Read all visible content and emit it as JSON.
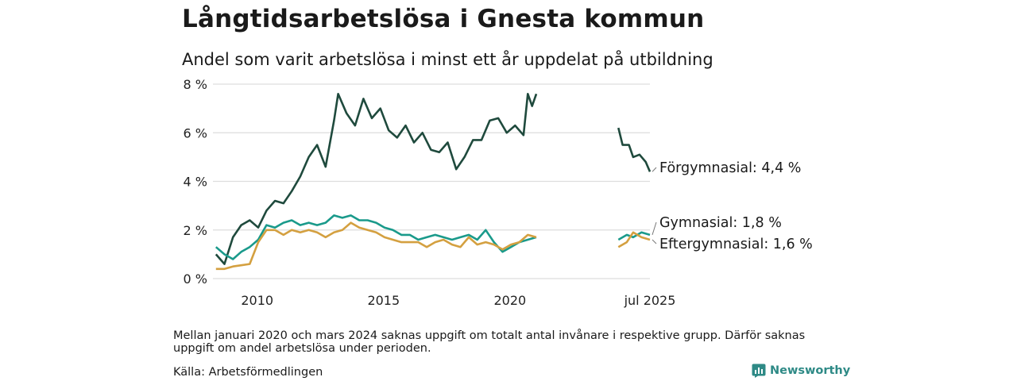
{
  "header": {
    "title": "Långtidsarbetslösa i Gnesta kommun",
    "subtitle": "Andel som varit arbetslösa i minst ett år uppdelat på utbildning"
  },
  "footer": {
    "note": "Mellan januari 2020 och mars 2024 saknas uppgift om totalt antal invånare i respektive grupp. Därför saknas uppgift om andel arbetslösa under perioden.",
    "source": "Källa: Arbetsförmedlingen",
    "brand": "Newsworthy"
  },
  "chart_data": {
    "type": "line",
    "title": "Långtidsarbetslösa i Gnesta kommun",
    "subtitle": "Andel som varit arbetslösa i minst ett år uppdelat på utbildning",
    "x_ticks": [
      "2010",
      "2015",
      "2020",
      "jul 2025"
    ],
    "y_ticks": [
      "0 %",
      "2 %",
      "4 %",
      "6 %",
      "8 %"
    ],
    "ylim": [
      0,
      8
    ],
    "grid": "horizontal",
    "series": [
      {
        "name": "Förgymnasial",
        "end_label": "Förgymnasial: 4,4 %",
        "color": "#1f4a3d",
        "points": [
          [
            "2008-05-15",
            1.0
          ],
          [
            "2008-09-15",
            0.6
          ],
          [
            "2009-01-15",
            1.7
          ],
          [
            "2009-05-15",
            2.2
          ],
          [
            "2009-09-15",
            2.4
          ],
          [
            "2010-01-15",
            2.1
          ],
          [
            "2010-05-15",
            2.8
          ],
          [
            "2010-09-15",
            3.2
          ],
          [
            "2011-01-15",
            3.1
          ],
          [
            "2011-05-15",
            3.6
          ],
          [
            "2011-09-15",
            4.2
          ],
          [
            "2012-01-15",
            5.0
          ],
          [
            "2012-05-15",
            5.5
          ],
          [
            "2012-09-15",
            4.6
          ],
          [
            "2013-01-15",
            6.5
          ],
          [
            "2013-03-15",
            7.6
          ],
          [
            "2013-07-15",
            6.8
          ],
          [
            "2013-11-15",
            6.3
          ],
          [
            "2014-03-15",
            7.4
          ],
          [
            "2014-07-15",
            6.6
          ],
          [
            "2014-11-15",
            7.0
          ],
          [
            "2015-03-15",
            6.1
          ],
          [
            "2015-07-15",
            5.8
          ],
          [
            "2015-11-15",
            6.3
          ],
          [
            "2016-03-15",
            5.6
          ],
          [
            "2016-07-15",
            6.0
          ],
          [
            "2016-11-15",
            5.3
          ],
          [
            "2017-03-15",
            5.2
          ],
          [
            "2017-07-15",
            5.6
          ],
          [
            "2017-11-15",
            4.5
          ],
          [
            "2018-03-15",
            5.0
          ],
          [
            "2018-07-15",
            5.7
          ],
          [
            "2018-11-15",
            5.7
          ],
          [
            "2019-03-15",
            6.5
          ],
          [
            "2019-07-15",
            6.6
          ],
          [
            "2019-11-15",
            6.0
          ],
          [
            "2020-03-15",
            6.3
          ],
          [
            "2020-07-15",
            5.9
          ],
          [
            "2020-09-15",
            7.6
          ],
          [
            "2020-11-15",
            7.1
          ],
          [
            "2021-01-15",
            7.6
          ],
          null,
          [
            "2024-04-15",
            6.2
          ],
          [
            "2024-06-15",
            5.5
          ],
          [
            "2024-09-15",
            5.5
          ],
          [
            "2024-11-15",
            5.0
          ],
          [
            "2025-02-15",
            5.1
          ],
          [
            "2025-05-15",
            4.8
          ],
          [
            "2025-07-15",
            4.4
          ]
        ]
      },
      {
        "name": "Gymnasial",
        "end_label": "Gymnasial: 1,8 %",
        "color": "#1a9a8b",
        "points": [
          [
            "2008-05-15",
            1.3
          ],
          [
            "2008-09-15",
            1.0
          ],
          [
            "2009-01-15",
            0.8
          ],
          [
            "2009-05-15",
            1.1
          ],
          [
            "2009-09-15",
            1.3
          ],
          [
            "2010-01-15",
            1.6
          ],
          [
            "2010-05-15",
            2.2
          ],
          [
            "2010-09-15",
            2.1
          ],
          [
            "2011-01-15",
            2.3
          ],
          [
            "2011-05-15",
            2.4
          ],
          [
            "2011-09-15",
            2.2
          ],
          [
            "2012-01-15",
            2.3
          ],
          [
            "2012-05-15",
            2.2
          ],
          [
            "2012-09-15",
            2.3
          ],
          [
            "2013-01-15",
            2.6
          ],
          [
            "2013-05-15",
            2.5
          ],
          [
            "2013-09-15",
            2.6
          ],
          [
            "2014-01-15",
            2.4
          ],
          [
            "2014-05-15",
            2.4
          ],
          [
            "2014-09-15",
            2.3
          ],
          [
            "2015-01-15",
            2.1
          ],
          [
            "2015-05-15",
            2.0
          ],
          [
            "2015-09-15",
            1.8
          ],
          [
            "2016-01-15",
            1.8
          ],
          [
            "2016-05-15",
            1.6
          ],
          [
            "2016-09-15",
            1.7
          ],
          [
            "2017-01-15",
            1.8
          ],
          [
            "2017-05-15",
            1.7
          ],
          [
            "2017-09-15",
            1.6
          ],
          [
            "2018-01-15",
            1.7
          ],
          [
            "2018-05-15",
            1.8
          ],
          [
            "2018-09-15",
            1.6
          ],
          [
            "2019-01-15",
            2.0
          ],
          [
            "2019-05-15",
            1.5
          ],
          [
            "2019-09-15",
            1.1
          ],
          [
            "2020-01-15",
            1.3
          ],
          [
            "2020-05-15",
            1.5
          ],
          [
            "2020-09-15",
            1.6
          ],
          [
            "2021-01-15",
            1.7
          ],
          null,
          [
            "2024-04-15",
            1.6
          ],
          [
            "2024-08-15",
            1.8
          ],
          [
            "2024-11-15",
            1.7
          ],
          [
            "2025-03-15",
            1.9
          ],
          [
            "2025-07-15",
            1.8
          ]
        ]
      },
      {
        "name": "Eftergymnasial",
        "end_label": "Eftergymnasial: 1,6 %",
        "color": "#d4a040",
        "points": [
          [
            "2008-05-15",
            0.4
          ],
          [
            "2008-09-15",
            0.4
          ],
          [
            "2009-01-15",
            0.5
          ],
          [
            "2009-05-15",
            0.55
          ],
          [
            "2009-09-15",
            0.6
          ],
          [
            "2010-01-15",
            1.5
          ],
          [
            "2010-05-15",
            2.0
          ],
          [
            "2010-09-15",
            2.0
          ],
          [
            "2011-01-15",
            1.8
          ],
          [
            "2011-05-15",
            2.0
          ],
          [
            "2011-09-15",
            1.9
          ],
          [
            "2012-01-15",
            2.0
          ],
          [
            "2012-05-15",
            1.9
          ],
          [
            "2012-09-15",
            1.7
          ],
          [
            "2013-01-15",
            1.9
          ],
          [
            "2013-05-15",
            2.0
          ],
          [
            "2013-09-15",
            2.3
          ],
          [
            "2014-01-15",
            2.1
          ],
          [
            "2014-05-15",
            2.0
          ],
          [
            "2014-09-15",
            1.9
          ],
          [
            "2015-01-15",
            1.7
          ],
          [
            "2015-05-15",
            1.6
          ],
          [
            "2015-09-15",
            1.5
          ],
          [
            "2016-01-15",
            1.5
          ],
          [
            "2016-05-15",
            1.5
          ],
          [
            "2016-09-15",
            1.3
          ],
          [
            "2017-01-15",
            1.5
          ],
          [
            "2017-05-15",
            1.6
          ],
          [
            "2017-09-15",
            1.4
          ],
          [
            "2018-01-15",
            1.3
          ],
          [
            "2018-05-15",
            1.7
          ],
          [
            "2018-09-15",
            1.4
          ],
          [
            "2019-01-15",
            1.5
          ],
          [
            "2019-05-15",
            1.4
          ],
          [
            "2019-09-15",
            1.2
          ],
          [
            "2020-01-15",
            1.4
          ],
          [
            "2020-05-15",
            1.5
          ],
          [
            "2020-09-15",
            1.8
          ],
          [
            "2021-01-15",
            1.7
          ],
          null,
          [
            "2024-04-15",
            1.3
          ],
          [
            "2024-08-15",
            1.5
          ],
          [
            "2024-11-15",
            1.9
          ],
          [
            "2025-03-15",
            1.7
          ],
          [
            "2025-07-15",
            1.6
          ]
        ]
      }
    ]
  }
}
